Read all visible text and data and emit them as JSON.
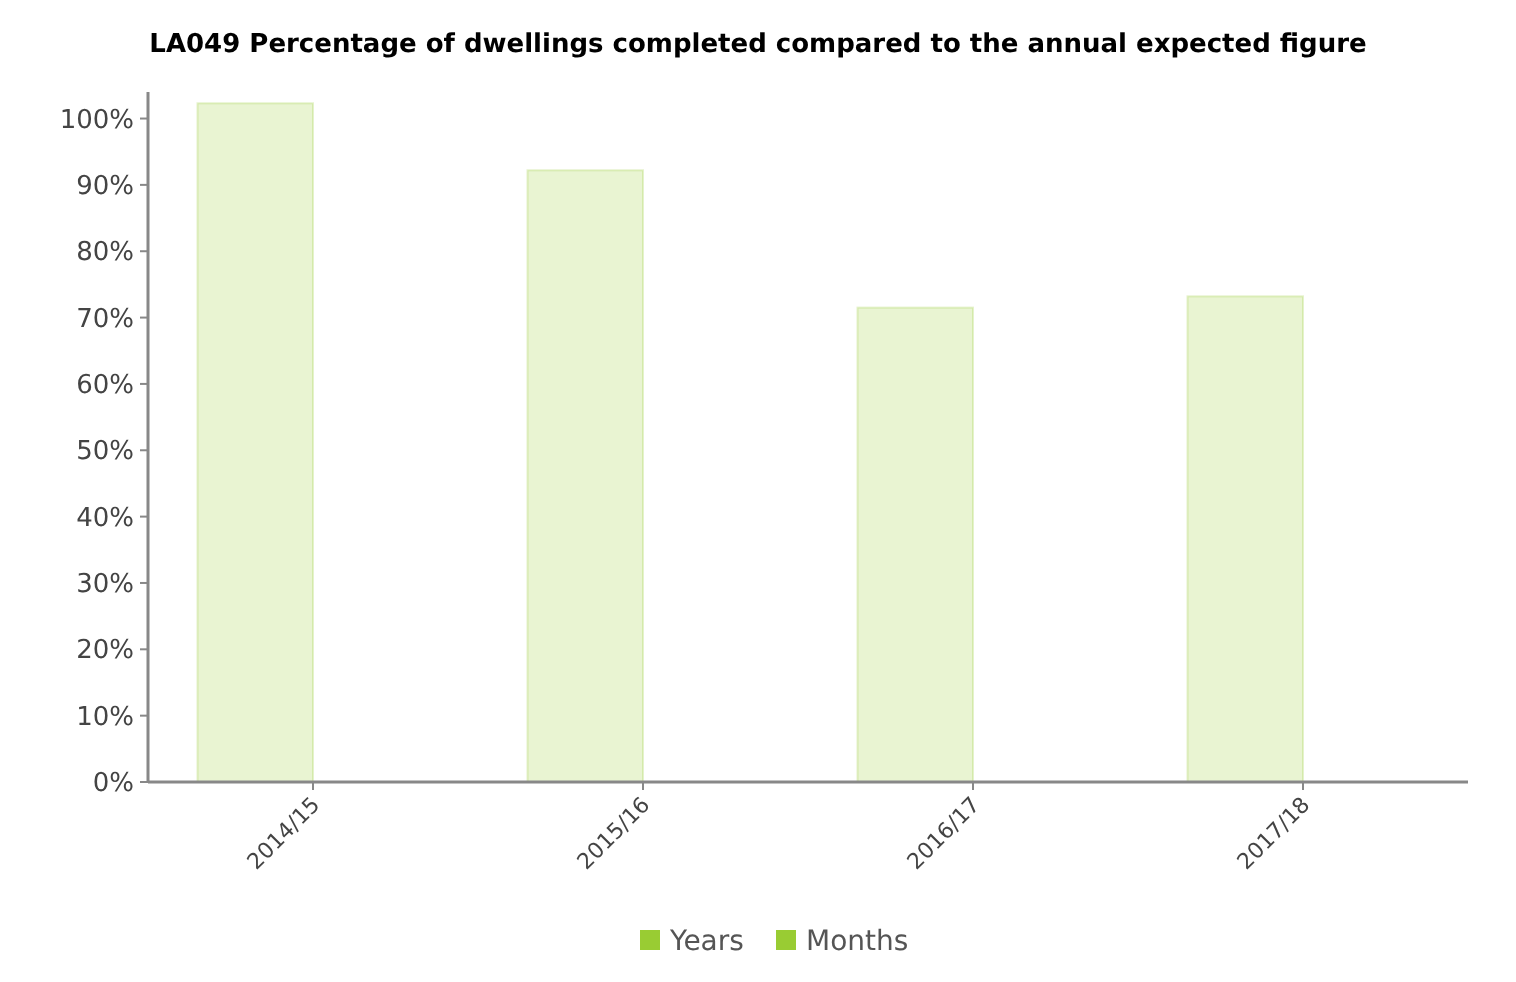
{
  "chart_data": {
    "type": "bar",
    "title": "LA049 Percentage of dwellings completed compared to the annual expected figure",
    "categories": [
      "2014/15",
      "2015/16",
      "2016/17",
      "2017/18"
    ],
    "series": [
      {
        "name": "Years",
        "color": "#99cc33",
        "values": [
          102.3,
          92.2,
          71.5,
          73.2
        ]
      },
      {
        "name": "Months",
        "color": "#99cc33",
        "values": [
          null,
          null,
          null,
          null
        ]
      }
    ],
    "ylim": [
      0,
      104
    ],
    "yticks": [
      {
        "value": 0,
        "label": "0%"
      },
      {
        "value": 10,
        "label": "10%"
      },
      {
        "value": 20,
        "label": "20%"
      },
      {
        "value": 30,
        "label": "30%"
      },
      {
        "value": 40,
        "label": "40%"
      },
      {
        "value": 50,
        "label": "50%"
      },
      {
        "value": 60,
        "label": "60%"
      },
      {
        "value": 70,
        "label": "70%"
      },
      {
        "value": 80,
        "label": "80%"
      },
      {
        "value": 90,
        "label": "90%"
      },
      {
        "value": 100,
        "label": "100%"
      }
    ],
    "grid": false,
    "legend": "bottom"
  }
}
